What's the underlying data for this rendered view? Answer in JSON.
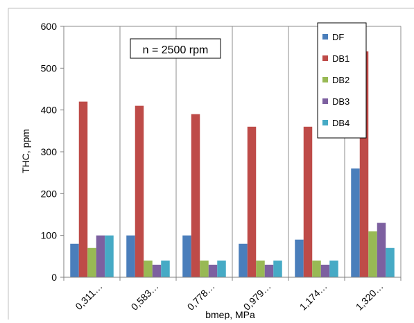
{
  "chart_data": {
    "type": "bar",
    "annotation": "n = 2500 rpm",
    "xlabel": "bmep, MPa",
    "ylabel": "THC, ppm",
    "categories": [
      "0,311…",
      "0,583…",
      "0,778…",
      "0,979…",
      "1,174…",
      "1,320…"
    ],
    "ylim": [
      0,
      600
    ],
    "yticks": [
      "0",
      "100",
      "200",
      "300",
      "400",
      "500",
      "600"
    ],
    "grid": "vertical",
    "legend_position": "top-right",
    "series": [
      {
        "name": "DF",
        "color": "#4a7ebb",
        "values": [
          80,
          100,
          100,
          80,
          90,
          260
        ]
      },
      {
        "name": "DB1",
        "color": "#be4b48",
        "values": [
          420,
          410,
          390,
          360,
          360,
          540
        ]
      },
      {
        "name": "DB2",
        "color": "#98b954",
        "values": [
          70,
          40,
          40,
          40,
          40,
          110
        ]
      },
      {
        "name": "DB3",
        "color": "#7d60a0",
        "values": [
          100,
          30,
          30,
          30,
          30,
          130
        ]
      },
      {
        "name": "DB4",
        "color": "#46aac5",
        "values": [
          100,
          40,
          40,
          40,
          40,
          70
        ]
      }
    ]
  }
}
